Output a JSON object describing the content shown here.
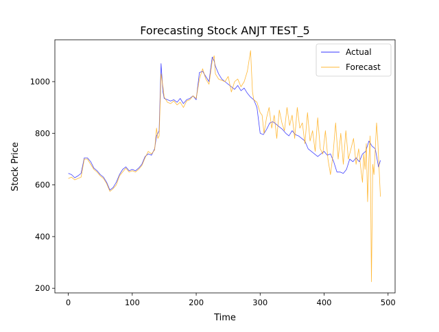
{
  "chart_data": {
    "type": "line",
    "title": "Forecasting Stock ANJT TEST_5",
    "xlabel": "Time",
    "ylabel": "Stock Price",
    "xlim": [
      -21,
      511
    ],
    "ylim": [
      182,
      1162
    ],
    "xticks": [
      0,
      100,
      200,
      300,
      400,
      500
    ],
    "yticks": [
      200,
      400,
      600,
      800,
      1000
    ],
    "grid": false,
    "legend_position": "top-right",
    "series": [
      {
        "name": "Actual",
        "color": "#0000ff",
        "x": [
          0,
          5,
          10,
          15,
          20,
          25,
          30,
          35,
          40,
          45,
          50,
          55,
          60,
          65,
          70,
          75,
          80,
          85,
          90,
          95,
          100,
          105,
          110,
          115,
          120,
          125,
          130,
          135,
          138,
          140,
          142,
          145,
          148,
          150,
          155,
          160,
          165,
          170,
          175,
          180,
          185,
          190,
          195,
          200,
          205,
          210,
          215,
          220,
          225,
          228,
          230,
          235,
          240,
          245,
          250,
          255,
          260,
          265,
          270,
          275,
          280,
          285,
          290,
          295,
          300,
          305,
          310,
          315,
          320,
          325,
          330,
          335,
          340,
          345,
          350,
          355,
          360,
          365,
          370,
          375,
          380,
          385,
          390,
          395,
          400,
          405,
          410,
          415,
          420,
          425,
          430,
          435,
          440,
          445,
          450,
          455,
          460,
          465,
          470,
          475,
          480,
          485,
          488
        ],
        "values": [
          645,
          640,
          628,
          635,
          645,
          705,
          705,
          690,
          665,
          655,
          640,
          630,
          610,
          580,
          590,
          610,
          640,
          660,
          670,
          655,
          660,
          655,
          665,
          680,
          710,
          720,
          715,
          740,
          790,
          800,
          810,
          1070,
          960,
          935,
          930,
          925,
          930,
          920,
          935,
          915,
          930,
          935,
          945,
          930,
          1035,
          1040,
          1020,
          1000,
          1095,
          1080,
          1060,
          1030,
          1010,
          1000,
          990,
          980,
          970,
          985,
          965,
          975,
          955,
          940,
          930,
          900,
          800,
          795,
          815,
          840,
          845,
          835,
          825,
          815,
          800,
          790,
          810,
          795,
          790,
          780,
          770,
          740,
          730,
          720,
          710,
          720,
          730,
          715,
          720,
          690,
          650,
          650,
          645,
          660,
          700,
          690,
          705,
          690,
          720,
          730,
          770,
          750,
          740,
          670,
          695
        ]
      },
      {
        "name": "Forecast",
        "color": "#ffa500",
        "x": [
          0,
          5,
          10,
          15,
          20,
          25,
          30,
          35,
          40,
          45,
          50,
          55,
          60,
          65,
          70,
          75,
          80,
          85,
          90,
          95,
          100,
          105,
          110,
          115,
          120,
          125,
          130,
          135,
          138,
          140,
          142,
          145,
          148,
          150,
          155,
          160,
          165,
          170,
          175,
          180,
          185,
          190,
          195,
          200,
          205,
          210,
          215,
          220,
          225,
          228,
          230,
          235,
          240,
          245,
          250,
          255,
          260,
          265,
          270,
          275,
          280,
          285,
          288,
          290,
          295,
          300,
          303,
          306,
          310,
          314,
          318,
          322,
          326,
          330,
          334,
          338,
          342,
          346,
          350,
          354,
          358,
          362,
          366,
          370,
          374,
          378,
          382,
          386,
          390,
          394,
          398,
          402,
          406,
          410,
          414,
          418,
          422,
          426,
          430,
          434,
          438,
          442,
          446,
          450,
          454,
          458,
          460,
          462,
          464,
          466,
          468,
          470,
          472,
          474,
          476,
          478,
          480,
          482,
          484,
          486,
          488
        ],
        "values": [
          625,
          630,
          620,
          625,
          630,
          700,
          700,
          680,
          660,
          650,
          635,
          625,
          605,
          575,
          585,
          600,
          635,
          650,
          665,
          650,
          655,
          650,
          660,
          675,
          705,
          730,
          720,
          735,
          820,
          780,
          790,
          1030,
          980,
          940,
          920,
          915,
          925,
          910,
          920,
          900,
          925,
          930,
          945,
          935,
          1010,
          1050,
          1010,
          990,
          1080,
          1100,
          1030,
          1010,
          1005,
          1000,
          1020,
          960,
          1000,
          1010,
          980,
          1000,
          1040,
          1120,
          960,
          930,
          920,
          880,
          870,
          800,
          860,
          900,
          820,
          870,
          780,
          890,
          840,
          810,
          900,
          830,
          870,
          780,
          900,
          820,
          840,
          760,
          880,
          770,
          810,
          730,
          860,
          740,
          720,
          810,
          700,
          640,
          720,
          840,
          700,
          800,
          680,
          810,
          700,
          740,
          780,
          680,
          740,
          650,
          610,
          720,
          660,
          760,
          535,
          700,
          790,
          225,
          680,
          640,
          740,
          840,
          770,
          660,
          555
        ]
      }
    ]
  }
}
